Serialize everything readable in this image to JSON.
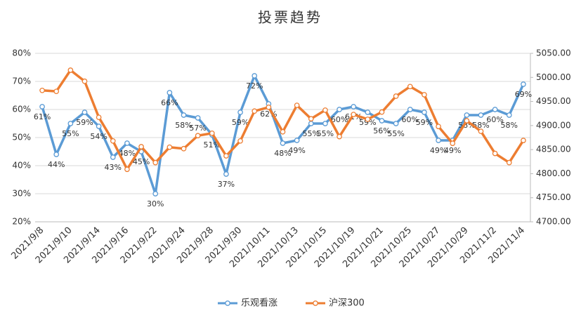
{
  "chart_data": {
    "type": "line",
    "title": "投票趋势",
    "categories": [
      "2021/9/8",
      null,
      "2021/9/10",
      null,
      "2021/9/14",
      null,
      "2021/9/16",
      null,
      "2021/9/22",
      null,
      "2021/9/24",
      null,
      "2021/9/28",
      null,
      "2021/9/30",
      null,
      "2021/10/11",
      null,
      "2021/10/13",
      null,
      "2021/10/15",
      null,
      "2021/10/19",
      null,
      "2021/10/21",
      null,
      "2021/10/25",
      null,
      "2021/10/27",
      null,
      "2021/10/29",
      null,
      "2021/11/2",
      null,
      "2021/11/4"
    ],
    "series": [
      {
        "name": "乐观看涨",
        "color": "#5b9bd5",
        "values": [
          61,
          44,
          55,
          59,
          54,
          43,
          48,
          45,
          30,
          66,
          58,
          57,
          51,
          37,
          59,
          72,
          62,
          48,
          49,
          55,
          55,
          60,
          61,
          59,
          56,
          55,
          60,
          59,
          49,
          49,
          58,
          58,
          60,
          58,
          69
        ],
        "value_labels": [
          "61%",
          "44%",
          "55%",
          "59%",
          "54%",
          "43%",
          "48%",
          "45%",
          "30%",
          "66%",
          "58%",
          "57%",
          "51%",
          "37%",
          "59%",
          "72%",
          "62%",
          "48%",
          "49%",
          "55%",
          "55%",
          "60%",
          "61%",
          "59%",
          "56%",
          "55%",
          "60%",
          "59%",
          "49%",
          "49%",
          "58%",
          "58%",
          "60%",
          "58%",
          "69%"
        ]
      },
      {
        "name": "沪深300",
        "color": "#ed7d31",
        "axis": "y2",
        "values": [
          4973,
          4971,
          5015,
          4992,
          4917,
          4868,
          4809,
          4856,
          4823,
          4855,
          4852,
          4879,
          4884,
          4837,
          4868,
          4930,
          4938,
          4887,
          4942,
          4914,
          4932,
          4877,
          4923,
          4913,
          4928,
          4961,
          4981,
          4964,
          4898,
          4863,
          4910,
          4888,
          4842,
          4823,
          4869
        ]
      }
    ],
    "ylim": [
      20,
      80
    ],
    "yticks": [
      {
        "value": 20,
        "label": "20%"
      },
      {
        "value": 30,
        "label": "30%"
      },
      {
        "value": 40,
        "label": "40%"
      },
      {
        "value": 50,
        "label": "50%"
      },
      {
        "value": 60,
        "label": "60%"
      },
      {
        "value": 70,
        "label": "70%"
      },
      {
        "value": 80,
        "label": "80%"
      }
    ],
    "y2lim": [
      4700,
      5050
    ],
    "y2ticks": [
      {
        "value": 4700,
        "label": "4700.00"
      },
      {
        "value": 4750,
        "label": "4750.00"
      },
      {
        "value": 4800,
        "label": "4800.00"
      },
      {
        "value": 4850,
        "label": "4850.00"
      },
      {
        "value": 4900,
        "label": "4900.00"
      },
      {
        "value": 4950,
        "label": "4950.00"
      },
      {
        "value": 5000,
        "label": "5000.00"
      },
      {
        "value": 5050,
        "label": "5050.00"
      }
    ],
    "grid": true,
    "legend": "bottom"
  }
}
